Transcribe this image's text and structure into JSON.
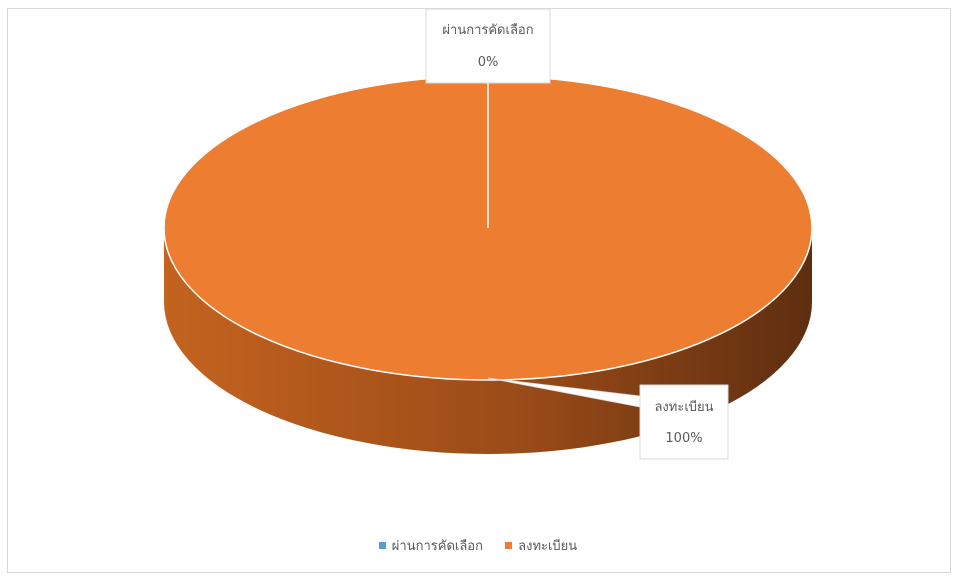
{
  "chart_data": {
    "type": "pie",
    "title": "",
    "categories": [
      "ผ่านการคัดเลือก",
      "ลงทะเบียน"
    ],
    "values": [
      0,
      100
    ],
    "data_labels": [
      {
        "name": "ผ่านการคัดเลือก",
        "percent": "0%"
      },
      {
        "name": "ลงทะเบียน",
        "percent": "100%"
      }
    ],
    "colors": [
      "#5B9BD5",
      "#ED7D31"
    ],
    "legend_position": "bottom",
    "style": "3d"
  }
}
